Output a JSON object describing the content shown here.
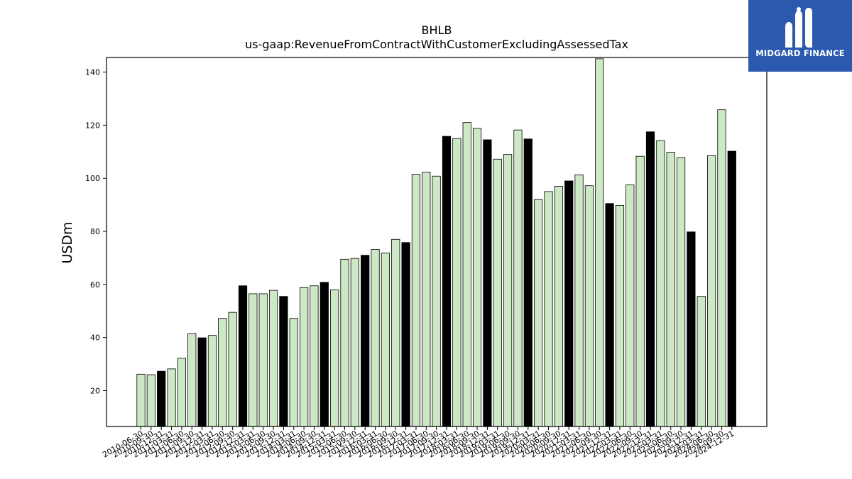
{
  "brand": {
    "name": "MIDGARD FINANCE",
    "logo_icon": "midgard-logo-icon",
    "bg_color": "#2a59ad"
  },
  "chart_data": {
    "type": "bar",
    "title": "BHLB",
    "subtitle": "us-gaap:RevenueFromContractWithCustomerExcludingAssessedTax",
    "ylabel": "USDm",
    "xlabel": "",
    "ylim": [
      6.5,
      145.5
    ],
    "yticks": [
      20,
      40,
      60,
      80,
      100,
      120,
      140
    ],
    "grid": false,
    "colors": {
      "quarter": "#cce8c4",
      "annual": "#000000",
      "edge": "#000000"
    },
    "categories": [
      "2010-06-30",
      "2010-09-30",
      "2010-12-31",
      "2011-03-31",
      "2011-06-30",
      "2011-09-30",
      "2011-12-31",
      "2012-03-31",
      "2012-06-30",
      "2012-09-30",
      "2012-12-31",
      "2013-03-31",
      "2013-06-30",
      "2013-09-30",
      "2013-12-31",
      "2014-03-31",
      "2014-06-30",
      "2014-09-30",
      "2014-12-31",
      "2015-03-31",
      "2015-06-30",
      "2015-09-30",
      "2015-12-31",
      "2016-03-31",
      "2016-06-30",
      "2016-09-30",
      "2016-12-31",
      "2017-03-31",
      "2017-06-30",
      "2017-09-30",
      "2017-12-31",
      "2018-03-31",
      "2018-06-30",
      "2018-09-30",
      "2018-12-31",
      "2019-03-31",
      "2019-06-30",
      "2019-09-30",
      "2019-12-31",
      "2020-03-31",
      "2020-06-30",
      "2020-09-30",
      "2020-12-31",
      "2021-03-31",
      "2021-06-30",
      "2021-09-30",
      "2021-12-31",
      "2022-03-31",
      "2022-06-30",
      "2022-09-30",
      "2022-12-31",
      "2023-03-31",
      "2023-06-30",
      "2023-09-30",
      "2023-12-31",
      "2024-03-31",
      "2024-06-30",
      "2024-09-30",
      "2024-12-31"
    ],
    "values": [
      26.2,
      26.0,
      27.3,
      28.2,
      32.2,
      41.5,
      39.9,
      40.8,
      47.2,
      49.5,
      59.5,
      56.5,
      56.5,
      57.8,
      55.5,
      47.2,
      58.8,
      59.5,
      60.8,
      58.0,
      69.5,
      69.8,
      71.0,
      73.2,
      71.8,
      77.0,
      75.8,
      101.5,
      102.3,
      100.8,
      115.8,
      115.0,
      121.0,
      118.8,
      114.5,
      107.2,
      109.0,
      118.2,
      114.8,
      92.0,
      95.0,
      97.0,
      99.0,
      101.3,
      97.2,
      145.0,
      90.5,
      89.8,
      97.5,
      108.3,
      117.5,
      114.2,
      109.8,
      107.8,
      79.8,
      55.5,
      108.5,
      125.8,
      110.2
    ],
    "annual": [
      false,
      false,
      true,
      false,
      false,
      false,
      true,
      false,
      false,
      false,
      true,
      false,
      false,
      false,
      true,
      false,
      false,
      false,
      true,
      false,
      false,
      false,
      true,
      false,
      false,
      false,
      true,
      false,
      false,
      false,
      true,
      false,
      false,
      false,
      true,
      false,
      false,
      false,
      true,
      false,
      false,
      false,
      true,
      false,
      false,
      false,
      true,
      false,
      false,
      false,
      true,
      false,
      false,
      false,
      true,
      false,
      false,
      false,
      true
    ]
  }
}
